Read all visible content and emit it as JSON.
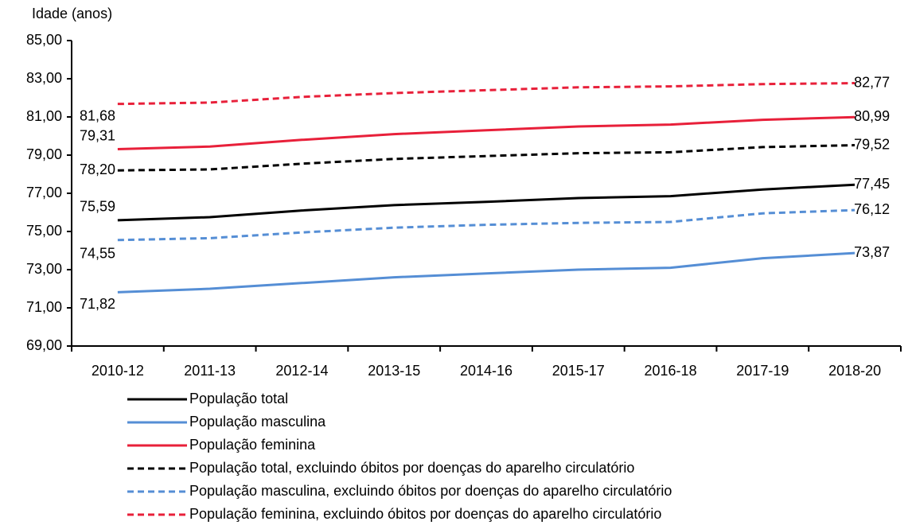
{
  "chart_data": {
    "type": "line",
    "y_axis_label": "Idade (anos)",
    "categories": [
      "2010-12",
      "2011-13",
      "2012-14",
      "2013-15",
      "2014-16",
      "2015-17",
      "2016-18",
      "2017-19",
      "2018-20"
    ],
    "ylim": [
      69,
      85
    ],
    "yticks": [
      {
        "value": 69,
        "label": "69,00"
      },
      {
        "value": 71,
        "label": "71,00"
      },
      {
        "value": 73,
        "label": "73,00"
      },
      {
        "value": 75,
        "label": "75,00"
      },
      {
        "value": 77,
        "label": "77,00"
      },
      {
        "value": 79,
        "label": "79,00"
      },
      {
        "value": 81,
        "label": "81,00"
      },
      {
        "value": 83,
        "label": "83,00"
      },
      {
        "value": 85,
        "label": "85,00"
      }
    ],
    "grid": false,
    "series": [
      {
        "name": "População total",
        "color": "#000000",
        "dashed": false,
        "values": [
          75.59,
          75.75,
          76.1,
          76.38,
          76.55,
          76.75,
          76.85,
          77.2,
          77.45
        ],
        "value_labels": [
          "75,59",
          null,
          null,
          null,
          null,
          null,
          null,
          null,
          "77,45"
        ]
      },
      {
        "name": "População masculina",
        "color": "#558ed5",
        "dashed": false,
        "values": [
          71.82,
          72.0,
          72.3,
          72.6,
          72.8,
          73.0,
          73.1,
          73.6,
          73.87
        ],
        "value_labels": [
          "71,82",
          null,
          null,
          null,
          null,
          null,
          null,
          null,
          "73,87"
        ]
      },
      {
        "name": "População feminina",
        "color": "#e8203a",
        "dashed": false,
        "values": [
          79.31,
          79.45,
          79.8,
          80.1,
          80.3,
          80.5,
          80.6,
          80.85,
          80.99
        ],
        "value_labels": [
          "79,31",
          null,
          null,
          null,
          null,
          null,
          null,
          null,
          "80,99"
        ]
      },
      {
        "name": "População total, excluindo óbitos por doenças do aparelho circulatório",
        "color": "#000000",
        "dashed": true,
        "values": [
          78.2,
          78.25,
          78.55,
          78.8,
          78.95,
          79.1,
          79.15,
          79.42,
          79.52
        ],
        "value_labels": [
          "78,20",
          null,
          null,
          null,
          null,
          null,
          null,
          null,
          "79,52"
        ]
      },
      {
        "name": "População masculina, excluindo óbitos por doenças do aparelho circulatório",
        "color": "#558ed5",
        "dashed": true,
        "values": [
          74.55,
          74.65,
          74.95,
          75.2,
          75.35,
          75.45,
          75.5,
          75.95,
          76.12
        ],
        "value_labels": [
          "74,55",
          null,
          null,
          null,
          null,
          null,
          null,
          null,
          "76,12"
        ]
      },
      {
        "name": "População feminina, excluindo óbitos por doenças do aparelho circulatório",
        "color": "#e8203a",
        "dashed": true,
        "values": [
          81.68,
          81.75,
          82.05,
          82.25,
          82.4,
          82.55,
          82.6,
          82.72,
          82.77
        ],
        "value_labels": [
          "81,68",
          null,
          null,
          null,
          null,
          null,
          null,
          null,
          "82,77"
        ]
      }
    ]
  }
}
